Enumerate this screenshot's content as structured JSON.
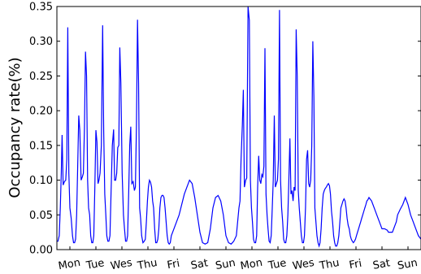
{
  "chart_data": {
    "type": "line",
    "title": "",
    "xlabel": "",
    "ylabel": "Occupancy rate(%)",
    "ylim": [
      0,
      0.35
    ],
    "xlim": [
      0,
      14
    ],
    "grid": false,
    "yticks": [
      "0.00",
      "0.05",
      "0.10",
      "0.15",
      "0.20",
      "0.25",
      "0.30",
      "0.35"
    ],
    "xtick_labels": [
      "Mon",
      "Tue",
      "Wes",
      "Thu",
      "Fri",
      "Sat",
      "Sun",
      "Mon",
      "Tue",
      "Wes",
      "Thu",
      "Fri",
      "Sat",
      "Sun"
    ],
    "line_color": "#0000ff",
    "series": [
      {
        "x": [
          0.0,
          0.04,
          0.09,
          0.13,
          0.17,
          0.2,
          0.24,
          0.29,
          0.34,
          0.38,
          0.42,
          0.46,
          0.5,
          0.55,
          0.6,
          0.64,
          0.68,
          0.72,
          0.76,
          0.8,
          0.84,
          0.88,
          0.93,
          0.98,
          1.02,
          1.06,
          1.1,
          1.14,
          1.18,
          1.22,
          1.26,
          1.3,
          1.34,
          1.38,
          1.42,
          1.46,
          1.5,
          1.54,
          1.58,
          1.62,
          1.66,
          1.71,
          1.76,
          1.8,
          1.84,
          1.88,
          1.92,
          1.96,
          2.0,
          2.04,
          2.08,
          2.13,
          2.18,
          2.22,
          2.26,
          2.3,
          2.34,
          2.38,
          2.42,
          2.46,
          2.51,
          2.56,
          2.6,
          2.64,
          2.68,
          2.72,
          2.76,
          2.8,
          2.84,
          2.88,
          2.93,
          2.98,
          3.02,
          3.06,
          3.1,
          3.14,
          3.18,
          3.22,
          3.26,
          3.31,
          3.36,
          3.4,
          3.44,
          3.48,
          3.52,
          3.56,
          3.6,
          3.64,
          3.68,
          3.72,
          3.76,
          3.8,
          3.84,
          3.88,
          3.92,
          3.96,
          4.0,
          4.04,
          4.08,
          4.12,
          4.16,
          4.2,
          4.24,
          4.28,
          4.32,
          4.36,
          4.4,
          4.5,
          4.7,
          4.9,
          5.0,
          5.1,
          5.2,
          5.3,
          5.4,
          5.5,
          5.6,
          5.7,
          5.8,
          5.9,
          6.0,
          6.1,
          6.2,
          6.3,
          6.4,
          6.5,
          6.6,
          6.7,
          6.8,
          6.9,
          7.0,
          7.04,
          7.08,
          7.13,
          7.17,
          7.21,
          7.26,
          7.3,
          7.35,
          7.4,
          7.44,
          7.48,
          7.52,
          7.56,
          7.6,
          7.64,
          7.68,
          7.72,
          7.76,
          7.8,
          7.84,
          7.88,
          7.92,
          7.96,
          8.0,
          8.04,
          8.08,
          8.12,
          8.16,
          8.2,
          8.24,
          8.28,
          8.32,
          8.36,
          8.4,
          8.44,
          8.48,
          8.52,
          8.56,
          8.6,
          8.64,
          8.68,
          8.72,
          8.76,
          8.8,
          8.84,
          8.88,
          8.92,
          8.96,
          9.0,
          9.04,
          9.08,
          9.12,
          9.16,
          9.2,
          9.24,
          9.28,
          9.32,
          9.36,
          9.4,
          9.44,
          9.48,
          9.52,
          9.56,
          9.6,
          9.64,
          9.68,
          9.72,
          9.76,
          9.8,
          9.84,
          9.88,
          9.92,
          9.96,
          10.0,
          10.04,
          10.08,
          10.12,
          10.16,
          10.2,
          10.24,
          10.28,
          10.32,
          10.36,
          10.4,
          10.44,
          10.48,
          10.52,
          10.56,
          10.6,
          10.64,
          10.68,
          10.72,
          10.76,
          10.8,
          10.84,
          10.88,
          10.92,
          10.96,
          11.0,
          11.04,
          11.08,
          11.12,
          11.16,
          11.2,
          11.24,
          11.28,
          11.32,
          11.36,
          11.4,
          11.44,
          11.48,
          11.52,
          11.56,
          11.6,
          11.64,
          11.68,
          11.72,
          11.76,
          11.8,
          11.84,
          11.88,
          11.92,
          11.96,
          12.0,
          12.1,
          12.2,
          12.3,
          12.4,
          12.5,
          12.6,
          12.7,
          12.75,
          12.8,
          12.85,
          12.9,
          12.95,
          13.0,
          13.05,
          13.1,
          13.2,
          13.3,
          13.4,
          13.5,
          13.6,
          13.7,
          13.8,
          13.9,
          14.0
        ],
        "y": [
          0.012,
          0.012,
          0.02,
          0.06,
          0.11,
          0.165,
          0.093,
          0.098,
          0.1,
          0.13,
          0.32,
          0.11,
          0.06,
          0.045,
          0.02,
          0.01,
          0.01,
          0.015,
          0.05,
          0.12,
          0.193,
          0.172,
          0.1,
          0.105,
          0.11,
          0.175,
          0.285,
          0.25,
          0.1,
          0.06,
          0.05,
          0.02,
          0.01,
          0.01,
          0.02,
          0.09,
          0.172,
          0.155,
          0.095,
          0.1,
          0.11,
          0.15,
          0.323,
          0.17,
          0.08,
          0.05,
          0.02,
          0.012,
          0.012,
          0.02,
          0.08,
          0.15,
          0.173,
          0.1,
          0.1,
          0.11,
          0.147,
          0.15,
          0.291,
          0.24,
          0.11,
          0.05,
          0.03,
          0.012,
          0.012,
          0.02,
          0.08,
          0.15,
          0.177,
          0.095,
          0.098,
          0.085,
          0.09,
          0.18,
          0.331,
          0.24,
          0.06,
          0.045,
          0.02,
          0.01,
          0.012,
          0.015,
          0.04,
          0.07,
          0.09,
          0.1,
          0.097,
          0.09,
          0.07,
          0.06,
          0.03,
          0.01,
          0.01,
          0.015,
          0.03,
          0.06,
          0.075,
          0.078,
          0.078,
          0.075,
          0.06,
          0.04,
          0.02,
          0.01,
          0.008,
          0.01,
          0.02,
          0.03,
          0.05,
          0.08,
          0.09,
          0.1,
          0.095,
          0.075,
          0.05,
          0.025,
          0.01,
          0.008,
          0.01,
          0.03,
          0.06,
          0.075,
          0.078,
          0.07,
          0.05,
          0.02,
          0.01,
          0.008,
          0.012,
          0.02,
          0.06,
          0.07,
          0.13,
          0.18,
          0.23,
          0.09,
          0.1,
          0.103,
          0.35,
          0.33,
          0.1,
          0.06,
          0.04,
          0.015,
          0.01,
          0.01,
          0.02,
          0.09,
          0.135,
          0.1,
          0.095,
          0.108,
          0.105,
          0.12,
          0.29,
          0.08,
          0.05,
          0.03,
          0.012,
          0.01,
          0.02,
          0.06,
          0.1,
          0.193,
          0.09,
          0.095,
          0.1,
          0.13,
          0.345,
          0.1,
          0.06,
          0.04,
          0.015,
          0.01,
          0.01,
          0.02,
          0.05,
          0.1,
          0.16,
          0.08,
          0.085,
          0.07,
          0.09,
          0.085,
          0.317,
          0.25,
          0.085,
          0.06,
          0.04,
          0.02,
          0.01,
          0.01,
          0.02,
          0.06,
          0.13,
          0.143,
          0.095,
          0.09,
          0.1,
          0.15,
          0.3,
          0.22,
          0.06,
          0.04,
          0.02,
          0.01,
          0.005,
          0.01,
          0.03,
          0.06,
          0.08,
          0.085,
          0.088,
          0.09,
          0.093,
          0.095,
          0.092,
          0.08,
          0.055,
          0.04,
          0.02,
          0.01,
          0.005,
          0.005,
          0.01,
          0.02,
          0.04,
          0.06,
          0.065,
          0.07,
          0.073,
          0.07,
          0.06,
          0.045,
          0.035,
          0.03,
          0.02,
          0.015,
          0.012,
          0.01,
          0.012,
          0.015,
          0.02,
          0.025,
          0.03,
          0.035,
          0.04,
          0.045,
          0.05,
          0.055,
          0.06,
          0.065,
          0.07,
          0.072,
          0.075,
          0.07,
          0.06,
          0.05,
          0.04,
          0.03,
          0.03,
          0.028,
          0.025,
          0.025,
          0.025,
          0.025,
          0.03,
          0.035,
          0.04,
          0.05,
          0.058,
          0.065,
          0.075,
          0.065,
          0.05,
          0.04,
          0.03,
          0.02,
          0.015
        ]
      }
    ]
  }
}
